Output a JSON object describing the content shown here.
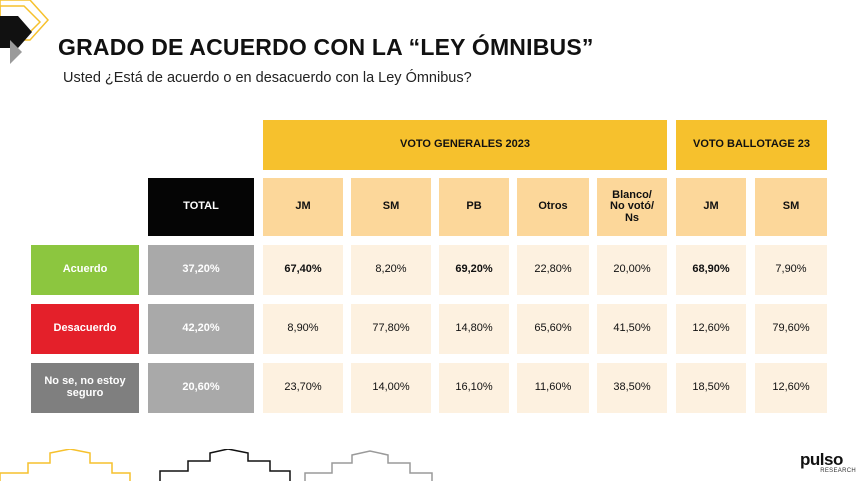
{
  "title": "GRADO DE ACUERDO CON LA “LEY ÓMNIBUS”",
  "subtitle": "Usted ¿Está de acuerdo o en desacuerdo con la Ley Ómnibus?",
  "brand": {
    "logo_text": "pulso",
    "logo_subtext": "RESEARCH",
    "accent_color": "#f6c12d"
  },
  "chart_data": {
    "type": "table",
    "group_headers": [
      {
        "label": "VOTO GENERALES 2023",
        "columns": [
          "JM",
          "SM",
          "PB",
          "Otros",
          "Blanco/ No votó/ Ns"
        ]
      },
      {
        "label": "VOTO BALLOTAGE 23",
        "columns": [
          "JM",
          "SM"
        ]
      }
    ],
    "total_header": "TOTAL",
    "columns": [
      "JM",
      "SM",
      "PB",
      "Otros",
      "Blanco/ No votó/ Ns",
      "JM",
      "SM"
    ],
    "rows": [
      {
        "label": "Acuerdo",
        "color": "#8cc63f",
        "total": "37,20%",
        "values": [
          "67,40%",
          "8,20%",
          "69,20%",
          "22,80%",
          "20,00%",
          "68,90%",
          "7,90%"
        ],
        "bold": [
          true,
          false,
          true,
          false,
          false,
          true,
          false
        ]
      },
      {
        "label": "Desacuerdo",
        "color": "#e4202a",
        "total": "42,20%",
        "values": [
          "8,90%",
          "77,80%",
          "14,80%",
          "65,60%",
          "41,50%",
          "12,60%",
          "79,60%"
        ],
        "bold": [
          false,
          false,
          false,
          false,
          false,
          false,
          false
        ]
      },
      {
        "label": "No se, no estoy seguro",
        "color": "#7f7f7f",
        "total": "20,60%",
        "values": [
          "23,70%",
          "14,00%",
          "16,10%",
          "11,60%",
          "38,50%",
          "18,50%",
          "12,60%"
        ],
        "bold": [
          false,
          false,
          false,
          false,
          false,
          false,
          false
        ]
      }
    ]
  }
}
